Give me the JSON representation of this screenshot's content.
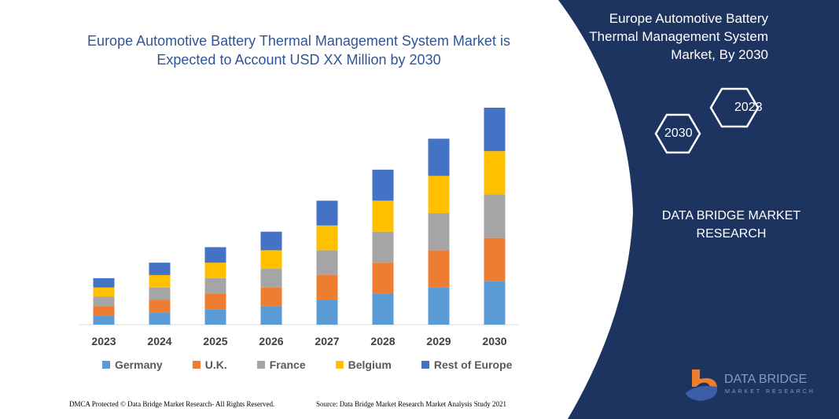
{
  "chart_data": {
    "type": "bar",
    "stacked": true,
    "title": "Europe Automotive Battery Thermal Management System Market is Expected to Account USD XX Million by 2030",
    "categories": [
      "2023",
      "2024",
      "2025",
      "2026",
      "2027",
      "2028",
      "2029",
      "2030"
    ],
    "series": [
      {
        "name": "Germany",
        "color": "#5b9bd5",
        "values": [
          12,
          16,
          20,
          24,
          32,
          40,
          48,
          56
        ]
      },
      {
        "name": "U.K.",
        "color": "#ed7d31",
        "values": [
          12,
          16,
          20,
          24,
          32,
          40,
          48,
          56
        ]
      },
      {
        "name": "France",
        "color": "#a5a5a5",
        "values": [
          12,
          16,
          20,
          24,
          32,
          40,
          48,
          56
        ]
      },
      {
        "name": "Belgium",
        "color": "#ffc000",
        "values": [
          12,
          16,
          20,
          24,
          32,
          40,
          48,
          56
        ]
      },
      {
        "name": "Rest of Europe",
        "color": "#4472c4",
        "values": [
          12,
          16,
          20,
          24,
          32,
          40,
          48,
          56
        ]
      }
    ],
    "ylim": [
      0,
      280
    ],
    "grid": false,
    "legend_position": "bottom"
  },
  "side_panel": {
    "title": "Europe Automotive Battery Thermal Management System Market, By 2030",
    "hex_years": [
      "2023",
      "2030"
    ],
    "company": "DATA BRIDGE MARKET RESEARCH",
    "color": "#1d3461"
  },
  "logo": {
    "name": "DATA BRIDGE",
    "sub": "MARKET RESEARCH"
  },
  "footer": {
    "left": "DMCA Protected © Data Bridge Market Research- All Rights Reserved.",
    "right": "Source: Data Bridge Market Research Market Analysis Study 2021"
  }
}
